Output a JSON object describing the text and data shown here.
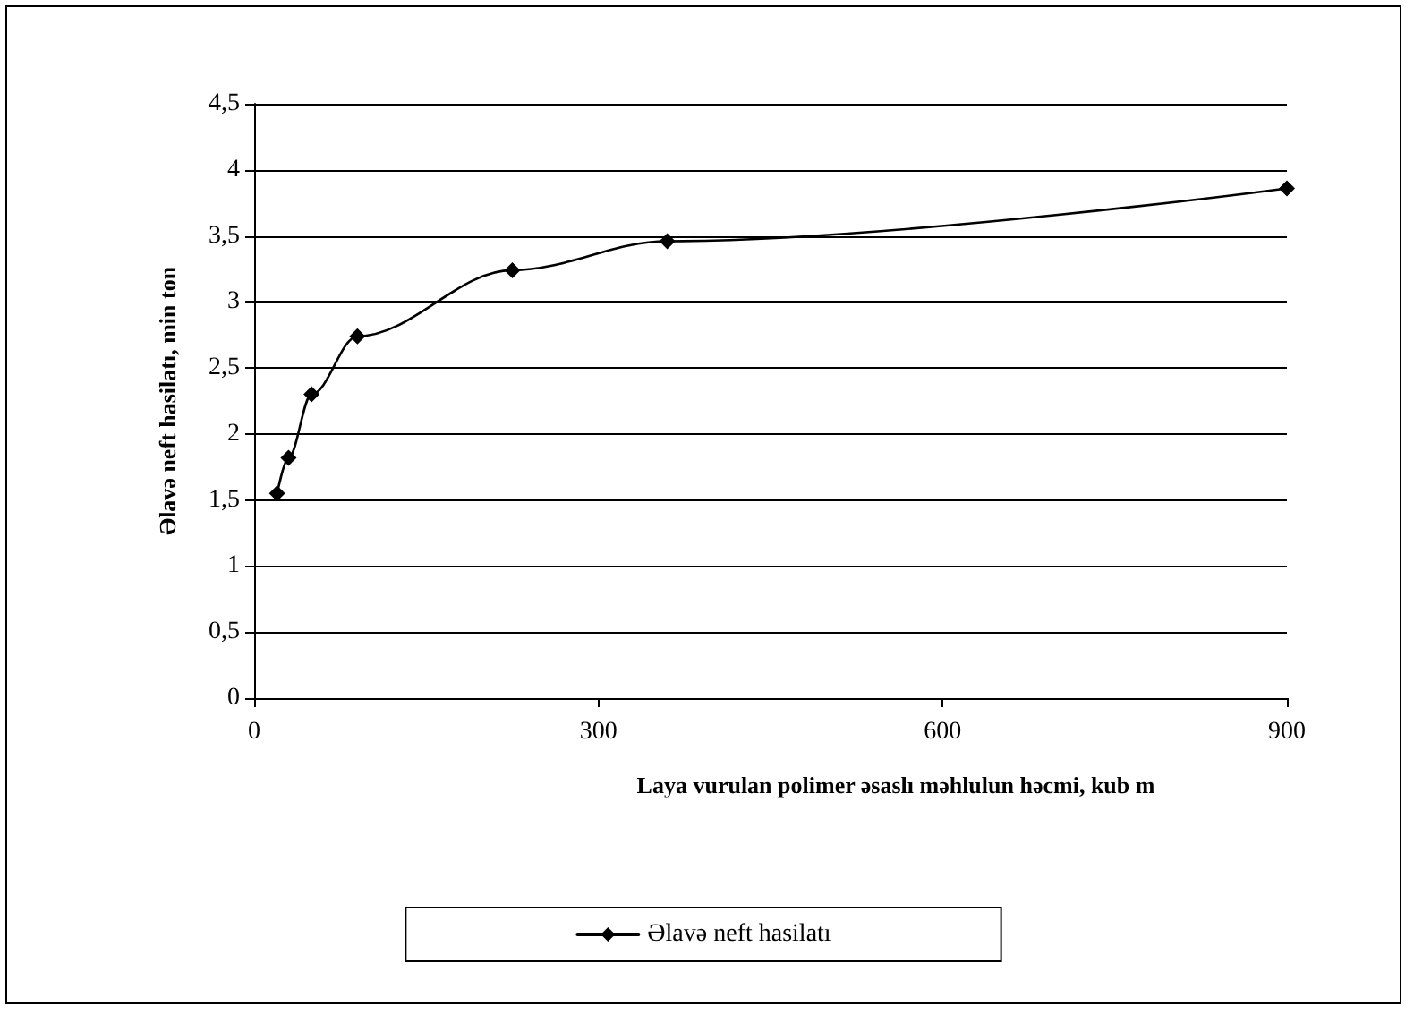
{
  "chart_data": {
    "type": "line",
    "xlabel": "Laya vurulan polimer əsaslı məhlulun həcmi, kub m",
    "ylabel": "Əlavə neft hasilatı, min ton",
    "x": [
      20,
      30,
      50,
      90,
      225,
      360,
      900
    ],
    "series": [
      {
        "name": "Əlavə neft hasilatı",
        "color": "#000000",
        "values": [
          1.55,
          1.82,
          2.3,
          2.74,
          3.24,
          3.46,
          3.86
        ]
      }
    ],
    "xlim": [
      0,
      900
    ],
    "xticks": [
      0,
      300,
      600,
      900
    ],
    "ylim": [
      0,
      4.5
    ],
    "yticks": [
      {
        "value": 0,
        "label": "0"
      },
      {
        "value": 0.5,
        "label": "0,5"
      },
      {
        "value": 1,
        "label": "1"
      },
      {
        "value": 1.5,
        "label": "1,5"
      },
      {
        "value": 2,
        "label": "2"
      },
      {
        "value": 2.5,
        "label": "2,5"
      },
      {
        "value": 3,
        "label": "3"
      },
      {
        "value": 3.5,
        "label": "3,5"
      },
      {
        "value": 4,
        "label": "4"
      },
      {
        "value": 4.5,
        "label": "4,5"
      }
    ],
    "grid": "y",
    "legend": "bottom",
    "marker": "diamond",
    "line_style": "solid"
  }
}
